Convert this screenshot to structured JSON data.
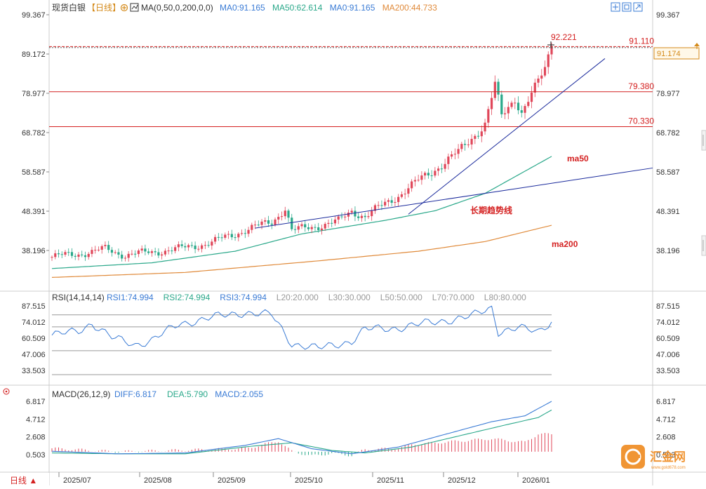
{
  "header": {
    "symbol": "现货白银",
    "period": "【日线】",
    "ma_label": "MA(0,50,0,200,0,0)",
    "ma_values": [
      {
        "text": "MA0:91.165",
        "color": "#3a7bd5"
      },
      {
        "text": "MA50:62.614",
        "color": "#2aa88a"
      },
      {
        "text": "MA0:91.165",
        "color": "#3a7bd5"
      },
      {
        "text": "MA200:44.733",
        "color": "#e08a3a"
      }
    ]
  },
  "rsi_header": {
    "label": "RSI(14,14,14)",
    "values": [
      {
        "text": "RSI1:74.994",
        "color": "#3a7bd5"
      },
      {
        "text": "RSI2:74.994",
        "color": "#2aa88a"
      },
      {
        "text": "RSI3:74.994",
        "color": "#3a7bd5"
      },
      {
        "text": "L20:20.000",
        "color": "#999999"
      },
      {
        "text": "L30:30.000",
        "color": "#999999"
      },
      {
        "text": "L50:50.000",
        "color": "#999999"
      },
      {
        "text": "L70:70.000",
        "color": "#999999"
      },
      {
        "text": "L80:80.000",
        "color": "#999999"
      }
    ]
  },
  "macd_header": {
    "label": "MACD(26,12,9)",
    "values": [
      {
        "text": "DIFF:6.817",
        "color": "#3a7bd5"
      },
      {
        "text": "DEA:5.790",
        "color": "#2aa88a"
      },
      {
        "text": "MACD:2.055",
        "color": "#3a7bd5"
      }
    ]
  },
  "bottom": {
    "period_button": "日线 ▲",
    "dates": [
      "2025/07",
      "2025/08",
      "2025/09",
      "2025/10",
      "2025/11",
      "2025/12",
      "2026/01"
    ]
  },
  "price_axis": {
    "ticks": [
      "99.367",
      "89.172",
      "78.977",
      "68.782",
      "58.587",
      "48.391",
      "38.196"
    ],
    "current_price": "91.174"
  },
  "rsi_axis": {
    "ticks": [
      "87.515",
      "74.012",
      "60.509",
      "47.006",
      "33.503"
    ]
  },
  "macd_axis": {
    "ticks": [
      "6.817",
      "4.712",
      "2.608",
      "0.503"
    ]
  },
  "annotations": {
    "peak_label": "92.221",
    "level_labels": [
      "91.110",
      "79.380",
      "70.330"
    ],
    "ma50_label": "ma50",
    "ma200_label": "ma200",
    "trend_label": "长期趋势线"
  },
  "watermark": {
    "brand": "汇金网",
    "url": "www.gold678.com"
  },
  "colors": {
    "up": "#e0475a",
    "down": "#2aa88a",
    "level": "#d42020",
    "trend": "#1a2a9c",
    "ma50": "#2aa88a",
    "ma200": "#e08a3a"
  },
  "chart_data": {
    "type": "line",
    "title": "现货白银",
    "xlabel": "",
    "ylabel": "",
    "x_ticks": [
      "2025/07",
      "2025/08",
      "2025/09",
      "2025/10",
      "2025/11",
      "2025/12",
      "2026/01"
    ],
    "ylim": [
      33.5,
      99.367
    ],
    "price_path": [
      [
        0,
        36.5
      ],
      [
        12,
        37.8
      ],
      [
        16,
        38.6
      ],
      [
        22,
        37.0
      ],
      [
        38,
        38.6
      ],
      [
        48,
        40.3
      ],
      [
        58,
        43.5
      ],
      [
        66,
        45.6
      ],
      [
        70,
        49.2
      ],
      [
        72,
        43.3
      ],
      [
        86,
        45.7
      ],
      [
        90,
        48.5
      ],
      [
        94,
        47.0
      ],
      [
        104,
        52.5
      ],
      [
        112,
        57.5
      ],
      [
        122,
        63.6
      ],
      [
        126,
        67.5
      ],
      [
        130,
        71.0
      ],
      [
        133,
        81.0
      ],
      [
        135,
        73.0
      ],
      [
        139,
        78.0
      ],
      [
        141,
        74.0
      ],
      [
        145,
        80.0
      ],
      [
        148,
        85.5
      ],
      [
        150,
        92.221
      ]
    ],
    "levels": [
      91.11,
      79.38,
      70.33
    ],
    "series": [
      {
        "name": "ma50",
        "values": [
          [
            0,
            33.5
          ],
          [
            30,
            35.0
          ],
          [
            55,
            38.0
          ],
          [
            75,
            42.5
          ],
          [
            100,
            46.0
          ],
          [
            115,
            48.5
          ],
          [
            130,
            53.0
          ],
          [
            150,
            62.614
          ]
        ]
      },
      {
        "name": "ma200",
        "values": [
          [
            0,
            31.2
          ],
          [
            40,
            32.5
          ],
          [
            80,
            35.5
          ],
          [
            110,
            38.0
          ],
          [
            130,
            40.5
          ],
          [
            150,
            44.733
          ]
        ]
      }
    ],
    "rsi": {
      "ylim": [
        33.503,
        87.515
      ],
      "values": [
        [
          0,
          63.0
        ],
        [
          8,
          66.5
        ],
        [
          12,
          73.0
        ],
        [
          18,
          61.0
        ],
        [
          25,
          55.0
        ],
        [
          30,
          59.0
        ],
        [
          38,
          72.0
        ],
        [
          48,
          78.0
        ],
        [
          58,
          82.0
        ],
        [
          66,
          80.0
        ],
        [
          72,
          56.0
        ],
        [
          80,
          52.0
        ],
        [
          90,
          58.0
        ],
        [
          94,
          68.0
        ],
        [
          104,
          69.0
        ],
        [
          112,
          73.0
        ],
        [
          120,
          76.0
        ],
        [
          126,
          79.0
        ],
        [
          132,
          86.0
        ],
        [
          134,
          66.0
        ],
        [
          140,
          69.0
        ],
        [
          146,
          66.0
        ],
        [
          150,
          74.994
        ]
      ]
    },
    "macd": {
      "ylim": [
        -1.5,
        6.817
      ],
      "diff": [
        [
          0,
          0.9
        ],
        [
          20,
          0.6
        ],
        [
          40,
          0.7
        ],
        [
          58,
          1.6
        ],
        [
          68,
          2.4
        ],
        [
          78,
          1.2
        ],
        [
          90,
          0.6
        ],
        [
          104,
          1.4
        ],
        [
          118,
          2.9
        ],
        [
          132,
          4.4
        ],
        [
          142,
          5.1
        ],
        [
          150,
          6.817
        ]
      ],
      "dea": [
        [
          0,
          0.7
        ],
        [
          20,
          0.6
        ],
        [
          40,
          0.6
        ],
        [
          60,
          1.5
        ],
        [
          72,
          1.9
        ],
        [
          84,
          1.0
        ],
        [
          94,
          0.7
        ],
        [
          108,
          1.4
        ],
        [
          122,
          2.7
        ],
        [
          136,
          4.0
        ],
        [
          146,
          4.9
        ],
        [
          150,
          5.79
        ]
      ]
    }
  }
}
